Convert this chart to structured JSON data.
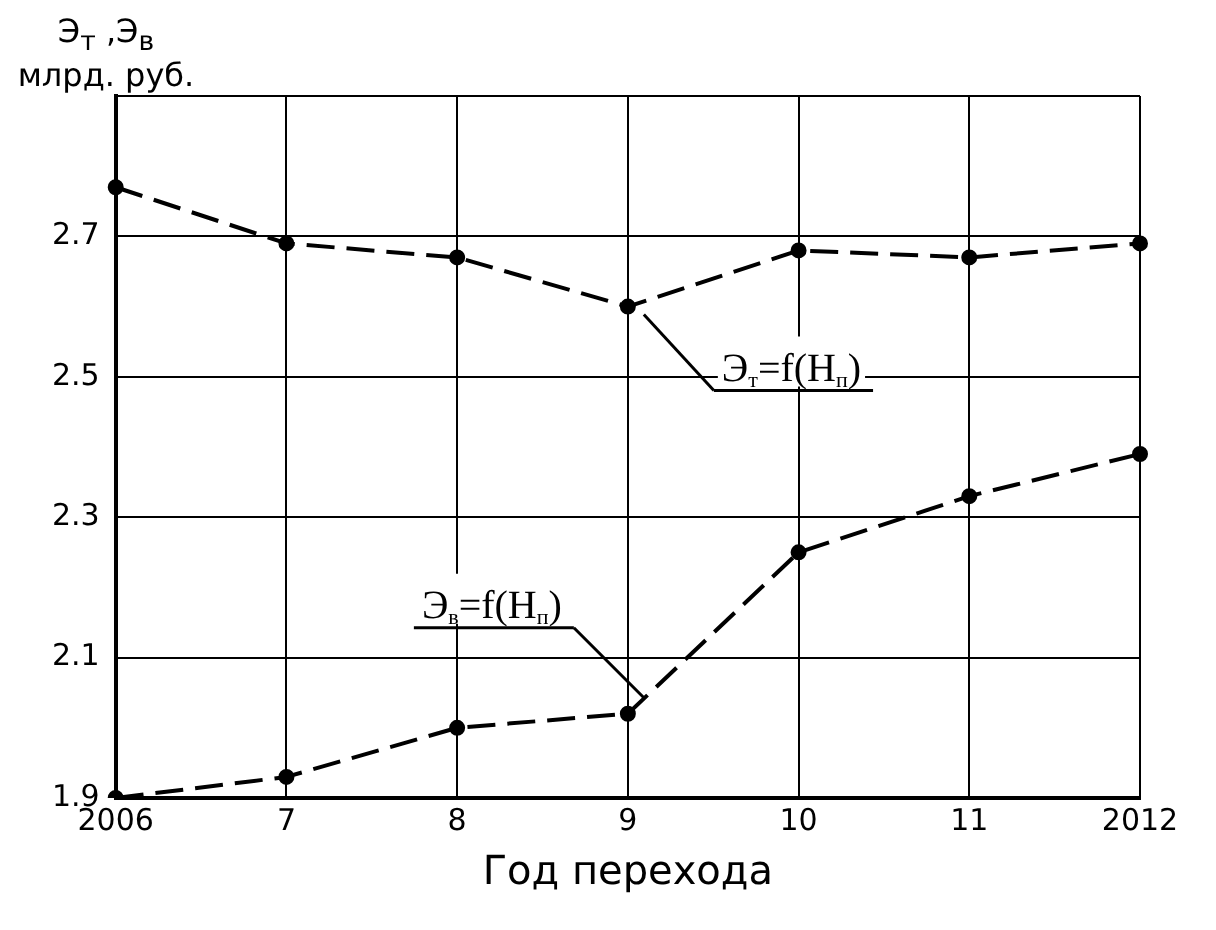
{
  "chart_data": {
    "type": "line",
    "xlabel": "Год перехода",
    "ylabel": "Э$_{т}$ ,Э$_{в}$ млрд. руб.",
    "categories": [
      "2006",
      "7",
      "8",
      "9",
      "10",
      "11",
      "2012"
    ],
    "ylim": [
      1.9,
      2.9
    ],
    "yticks": [
      1.9,
      2.1,
      2.3,
      2.5,
      2.7,
      {
        "value": 2.9,
        "label": null
      }
    ],
    "grid": true,
    "marker": "circle",
    "legend": false,
    "series": [
      {
        "color": "#000000",
        "line_style": "dashed",
        "values": [
          2.77,
          2.69,
          2.67,
          2.6,
          2.68,
          2.67,
          2.69
        ]
      },
      {
        "color": "#000000",
        "line_style": "dashed",
        "values": [
          1.9,
          1.93,
          2.0,
          2.02,
          2.25,
          2.33,
          2.39
        ]
      }
    ],
    "annotations": [
      {
        "text": "Э$_{т}$=f(H$_{п}$)",
        "x": "9",
        "y": 2.6
      },
      {
        "text": "Э$_{в}$=f(H$_{п}$)",
        "x": "9",
        "y": 2.02
      }
    ]
  }
}
